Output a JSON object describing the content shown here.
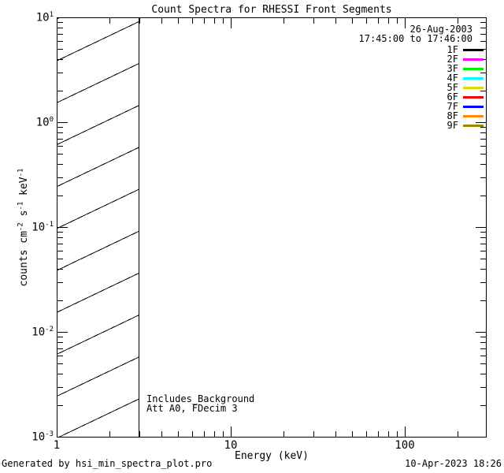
{
  "chart_data": {
    "type": "line",
    "title": "Count Spectra for RHESSI Front Segments",
    "xlabel": "Energy (keV)",
    "ylabel": "counts cm^-2 s^-1 keV^-1",
    "ylabel_parts": [
      {
        "text": "counts cm",
        "sup": "-2"
      },
      {
        "text": " s",
        "sup": "-1"
      },
      {
        "text": " keV",
        "sup": "-1"
      }
    ],
    "xscale": "log",
    "yscale": "log",
    "xlim": [
      1,
      300
    ],
    "ylim": [
      0.001,
      10
    ],
    "grid": false,
    "x_major_ticks": [
      1,
      10,
      100
    ],
    "x_tick_labels": [
      "1",
      "10",
      "100"
    ],
    "x_minor_ticks": [
      2,
      3,
      4,
      5,
      6,
      7,
      8,
      9,
      20,
      30,
      40,
      50,
      60,
      70,
      80,
      90,
      200
    ],
    "y_tick_base": "10",
    "y_major_exponents": [
      1,
      0,
      -1,
      -2,
      -3
    ],
    "y_minor_multipliers": [
      2,
      3,
      4,
      5,
      6,
      7,
      8,
      9
    ],
    "y_minor_decade_exponents": [
      0,
      -1,
      -2,
      -3
    ],
    "legend_position": "top-right",
    "header": {
      "date": "26-Aug-2003",
      "time_range": "17:45:00 to 17:46:00"
    },
    "series": [
      {
        "name": "1F",
        "color": "#000000",
        "points": []
      },
      {
        "name": "2F",
        "color": "#ff00ff",
        "points": []
      },
      {
        "name": "3F",
        "color": "#00ee00",
        "points": []
      },
      {
        "name": "4F",
        "color": "#00ffff",
        "points": []
      },
      {
        "name": "5F",
        "color": "#dcdc00",
        "points": []
      },
      {
        "name": "6F",
        "color": "#ee0000",
        "points": []
      },
      {
        "name": "7F",
        "color": "#0000ff",
        "points": []
      },
      {
        "name": "8F",
        "color": "#ff8800",
        "points": []
      },
      {
        "name": "9F",
        "color": "#998a00",
        "points": []
      }
    ],
    "annotations": [
      "Includes_Background",
      "Att A0, FDecim 3"
    ],
    "hatched_region": {
      "x_start": 1,
      "x_end": 3,
      "style": "diagonal-lines"
    }
  },
  "footer": {
    "left": "Generated by hsi_min_spectra_plot.pro",
    "right": "10-Apr-2023 18:26"
  }
}
